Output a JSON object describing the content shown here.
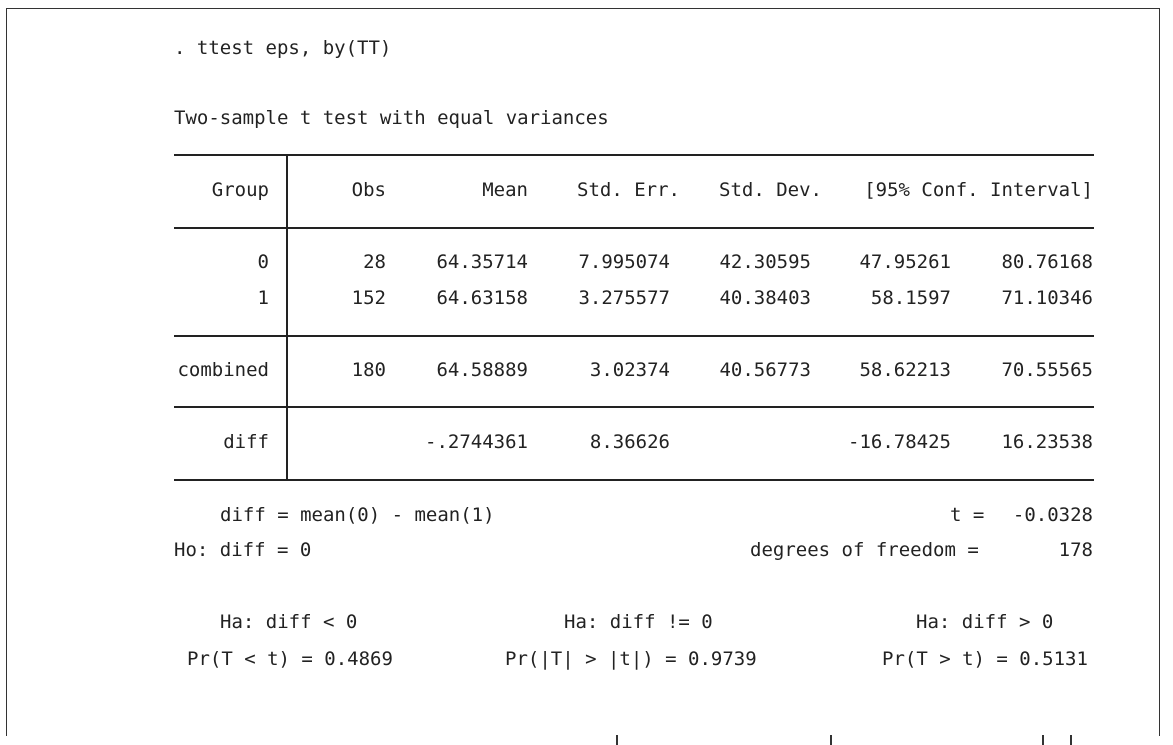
{
  "command": ". ttest eps, by(TT)",
  "test_title": "Two-sample t test with equal variances",
  "columns": [
    "Group",
    "Obs",
    "Mean",
    "Std. Err.",
    "Std. Dev.",
    "[95% Conf. Interval]"
  ],
  "rows": [
    {
      "group": "0",
      "obs": "28",
      "mean": "64.35714",
      "se": "7.995074",
      "sd": "42.30595",
      "ci_lo": "47.95261",
      "ci_hi": "80.76168"
    },
    {
      "group": "1",
      "obs": "152",
      "mean": "64.63158",
      "se": "3.275577",
      "sd": "40.38403",
      "ci_lo": "58.1597",
      "ci_hi": "71.10346"
    }
  ],
  "combined": {
    "group": "combined",
    "obs": "180",
    "mean": "64.58889",
    "se": "3.02374",
    "sd": "40.56773",
    "ci_lo": "58.62213",
    "ci_hi": "70.55565"
  },
  "diff_row": {
    "group": "diff",
    "mean": "-.2744361",
    "se": "8.36626",
    "ci_lo": "-16.78425",
    "ci_hi": "16.23538"
  },
  "stats": {
    "diff_def": "diff = mean(0) - mean(1)",
    "t_label": "t =",
    "t_value": "-0.0328",
    "ho": "Ho: diff = 0",
    "df_label": "degrees of freedom =",
    "df_value": "178"
  },
  "hypotheses": [
    {
      "ha": "Ha: diff < 0",
      "pr": "Pr(T < t) = 0.4869"
    },
    {
      "ha": "Ha: diff != 0",
      "pr": "Pr(|T| > |t|) = 0.9739"
    },
    {
      "ha": "Ha: diff > 0",
      "pr": "Pr(T > t) = 0.5131"
    }
  ]
}
